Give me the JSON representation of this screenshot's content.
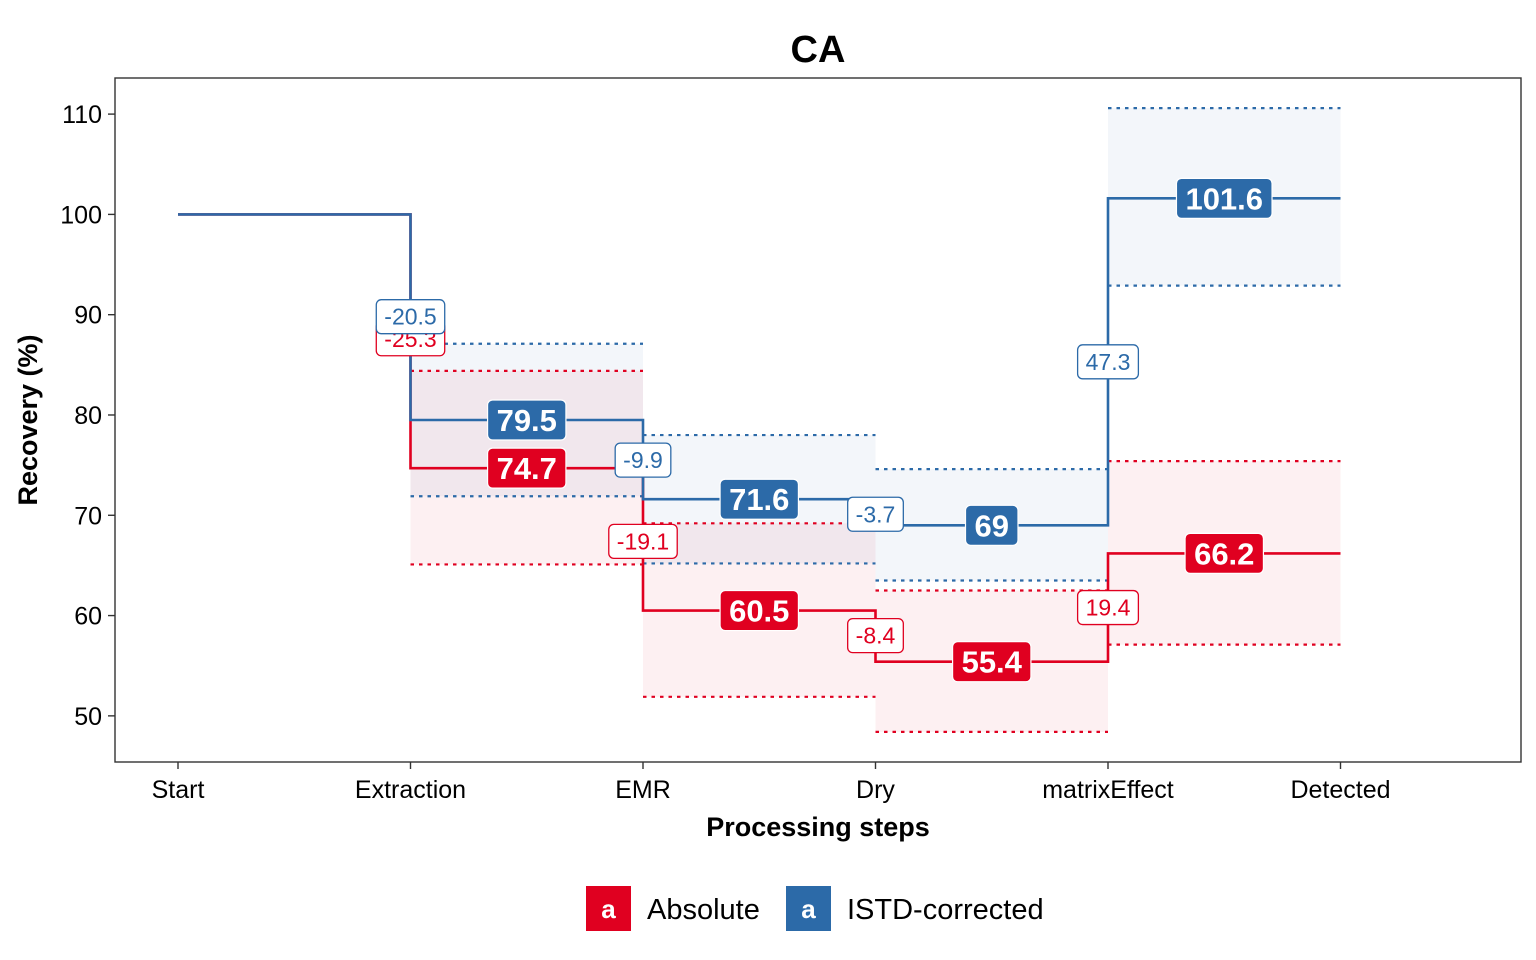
{
  "chart_data": {
    "type": "line",
    "title": "CA",
    "xlabel": "Processing steps",
    "ylabel": "Recovery (%)",
    "categories": [
      "Start",
      "Extraction",
      "EMR",
      "Dry",
      "matrixEffect",
      "Detected"
    ],
    "ylim": [
      45.4,
      113.6
    ],
    "yticks": [
      50,
      60,
      70,
      80,
      90,
      100,
      110
    ],
    "grid": false,
    "legend_position": "bottom",
    "start_value": 100,
    "series": [
      {
        "name": "Absolute",
        "color": "#e00020",
        "steps": [
          {
            "from": 1,
            "to": 2,
            "value": 74.7,
            "lower": 65.1,
            "upper": 84.4
          },
          {
            "from": 2,
            "to": 3,
            "value": 60.5,
            "lower": 51.9,
            "upper": 69.2
          },
          {
            "from": 3,
            "to": 4,
            "value": 55.4,
            "lower": 48.4,
            "upper": 62.5
          },
          {
            "from": 4,
            "to": 5,
            "value": 66.2,
            "lower": 57.1,
            "upper": 75.4
          }
        ],
        "changes": [
          {
            "at": 1,
            "label": "-25.3",
            "y": 87.6
          },
          {
            "at": 2,
            "label": "-19.1",
            "y": 67.4
          },
          {
            "at": 3,
            "label": "-8.4",
            "y": 58.0
          },
          {
            "at": 4,
            "label": "19.4",
            "y": 60.8
          }
        ]
      },
      {
        "name": "ISTD-corrected",
        "color": "#2c6aa8",
        "steps": [
          {
            "from": 1,
            "to": 2,
            "value": 79.5,
            "lower": 71.9,
            "upper": 87.1
          },
          {
            "from": 2,
            "to": 3,
            "value": 71.6,
            "lower": 65.2,
            "upper": 78.0
          },
          {
            "from": 3,
            "to": 4,
            "value": 69,
            "lower": 63.5,
            "upper": 74.6
          },
          {
            "from": 4,
            "to": 5,
            "value": 101.6,
            "lower": 92.9,
            "upper": 110.6
          }
        ],
        "changes": [
          {
            "at": 1,
            "label": "-20.5",
            "y": 89.8
          },
          {
            "at": 2,
            "label": "-9.9",
            "y": 75.5
          },
          {
            "at": 3,
            "label": "-3.7",
            "y": 70.1
          },
          {
            "at": 4,
            "label": "47.3",
            "y": 85.3
          }
        ]
      }
    ],
    "value_labels": [
      {
        "series": 0,
        "label": "74.7"
      },
      {
        "series": 0,
        "label": "60.5"
      },
      {
        "series": 0,
        "label": "55.4"
      },
      {
        "series": 0,
        "label": "66.2"
      },
      {
        "series": 1,
        "label": "79.5"
      },
      {
        "series": 1,
        "label": "71.6"
      },
      {
        "series": 1,
        "label": "69"
      },
      {
        "series": 1,
        "label": "101.6"
      }
    ],
    "legend": {
      "key_letter": "a",
      "entries": [
        "Absolute",
        "ISTD-corrected"
      ]
    }
  }
}
